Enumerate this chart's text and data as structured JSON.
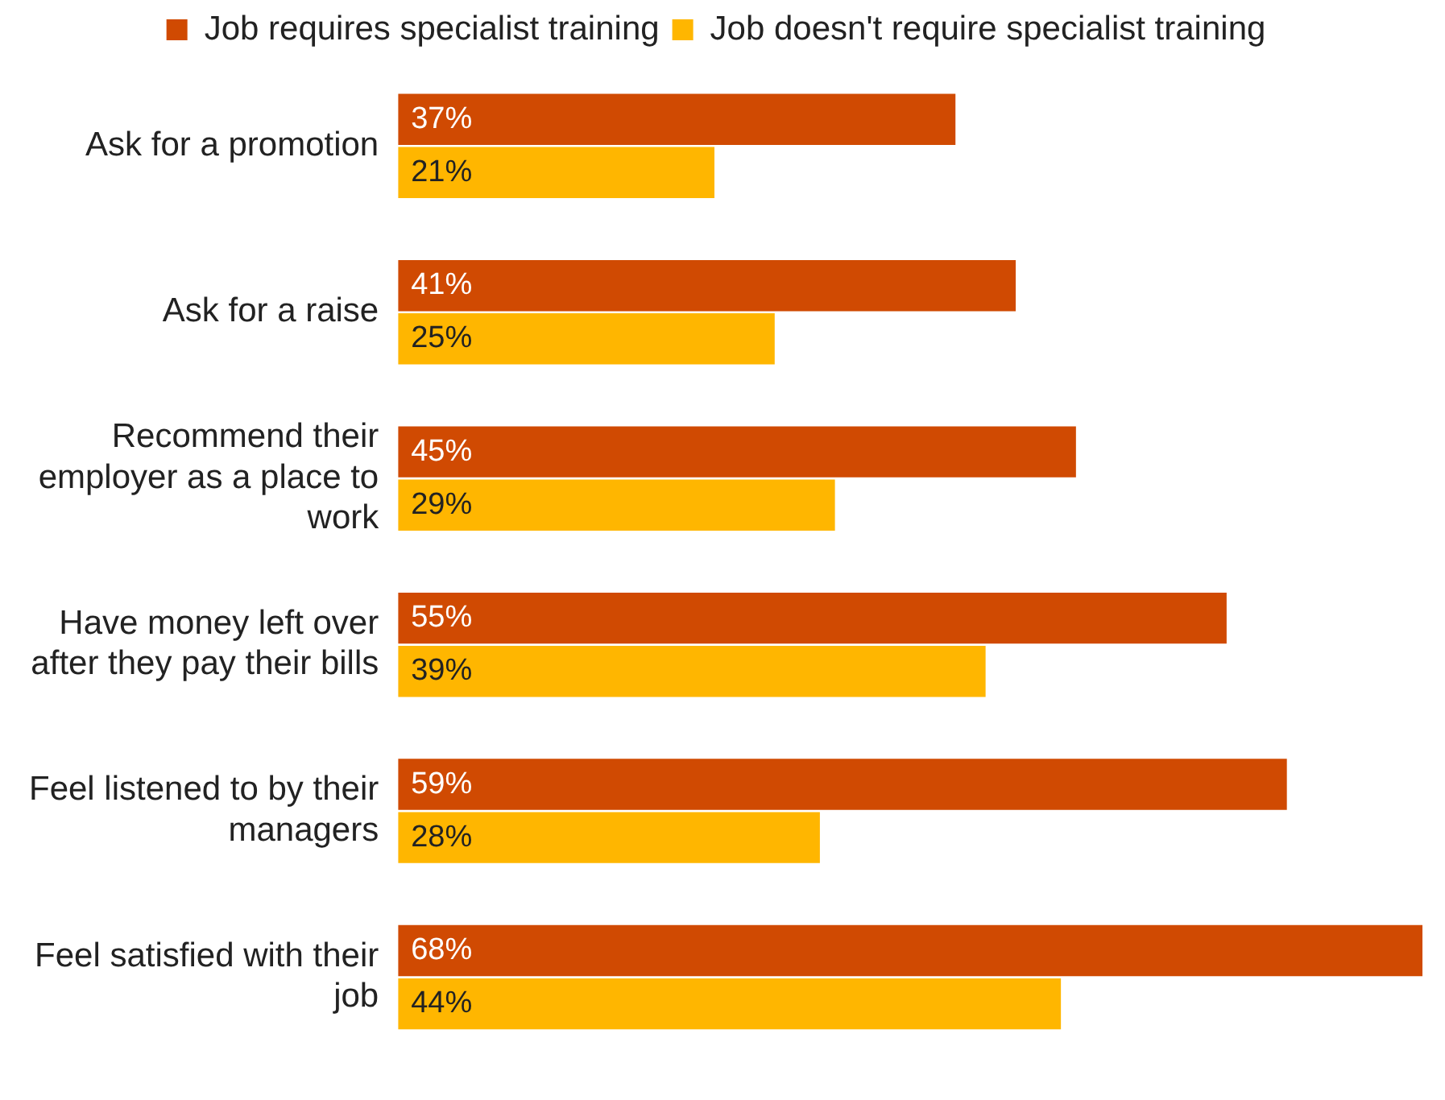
{
  "chart_data": {
    "type": "bar",
    "orientation": "horizontal",
    "categories": [
      "Ask for a promotion",
      "Ask for a raise",
      "Recommend their employer as a place to work",
      "Have money left over after they pay their bills",
      "Feel listened to by their managers",
      "Feel satisfied with their job"
    ],
    "series": [
      {
        "name": "Job requires specialist training",
        "color": "#d04a02",
        "values": [
          37,
          41,
          45,
          55,
          59,
          68
        ],
        "value_labels": [
          "37%",
          "41%",
          "45%",
          "55%",
          "59%",
          "68%"
        ]
      },
      {
        "name": "Job doesn't require specialist training",
        "color": "#ffb600",
        "values": [
          21,
          25,
          29,
          39,
          28,
          44
        ],
        "value_labels": [
          "21%",
          "25%",
          "29%",
          "39%",
          "28%",
          "44%"
        ]
      }
    ],
    "legend": "top",
    "grid": false,
    "tick_labels": "y"
  }
}
